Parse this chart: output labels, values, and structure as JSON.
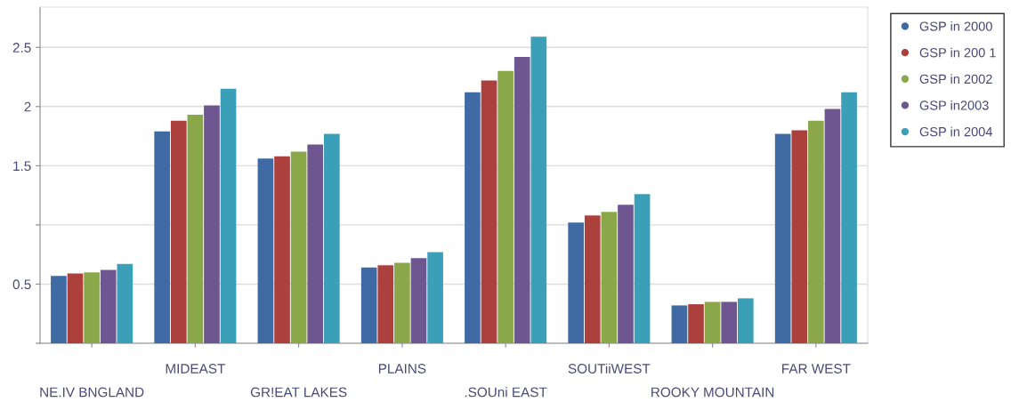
{
  "chart_data": {
    "type": "bar",
    "categories": [
      "NE.IV BNGLAND",
      "MIDEAST",
      "GR!EAT LAKES",
      "PLAINS",
      ".SOUni EAST",
      "SOUTiiWEST",
      "ROOKY MOUNTAIN",
      "FAR WEST"
    ],
    "series": [
      {
        "name": "GSP in 2000",
        "color": "#3f6aa3",
        "values": [
          0.57,
          1.79,
          1.56,
          0.64,
          2.12,
          1.02,
          0.32,
          1.77
        ]
      },
      {
        "name": "GSP in 200 1",
        "color": "#ab403d",
        "values": [
          0.59,
          1.88,
          1.58,
          0.66,
          2.22,
          1.08,
          0.33,
          1.8
        ]
      },
      {
        "name": "GSP in 2002",
        "color": "#8aa849",
        "values": [
          0.6,
          1.93,
          1.62,
          0.68,
          2.3,
          1.11,
          0.35,
          1.88
        ]
      },
      {
        "name": "GSP in2003",
        "color": "#6e5690",
        "values": [
          0.62,
          2.01,
          1.68,
          0.72,
          2.42,
          1.17,
          0.35,
          1.98
        ]
      },
      {
        "name": "GSP in 2004",
        "color": "#3b9fb7",
        "values": [
          0.67,
          2.15,
          1.77,
          0.77,
          2.59,
          1.26,
          0.38,
          2.12
        ]
      }
    ],
    "ylim": [
      0,
      2.84
    ],
    "yticks": [
      {
        "value": 0,
        "label": null
      },
      0.5,
      {
        "value": 1,
        "label": null
      },
      1.5,
      2,
      2.5
    ],
    "grid": "y",
    "legend": "top right",
    "marker": "circle"
  }
}
